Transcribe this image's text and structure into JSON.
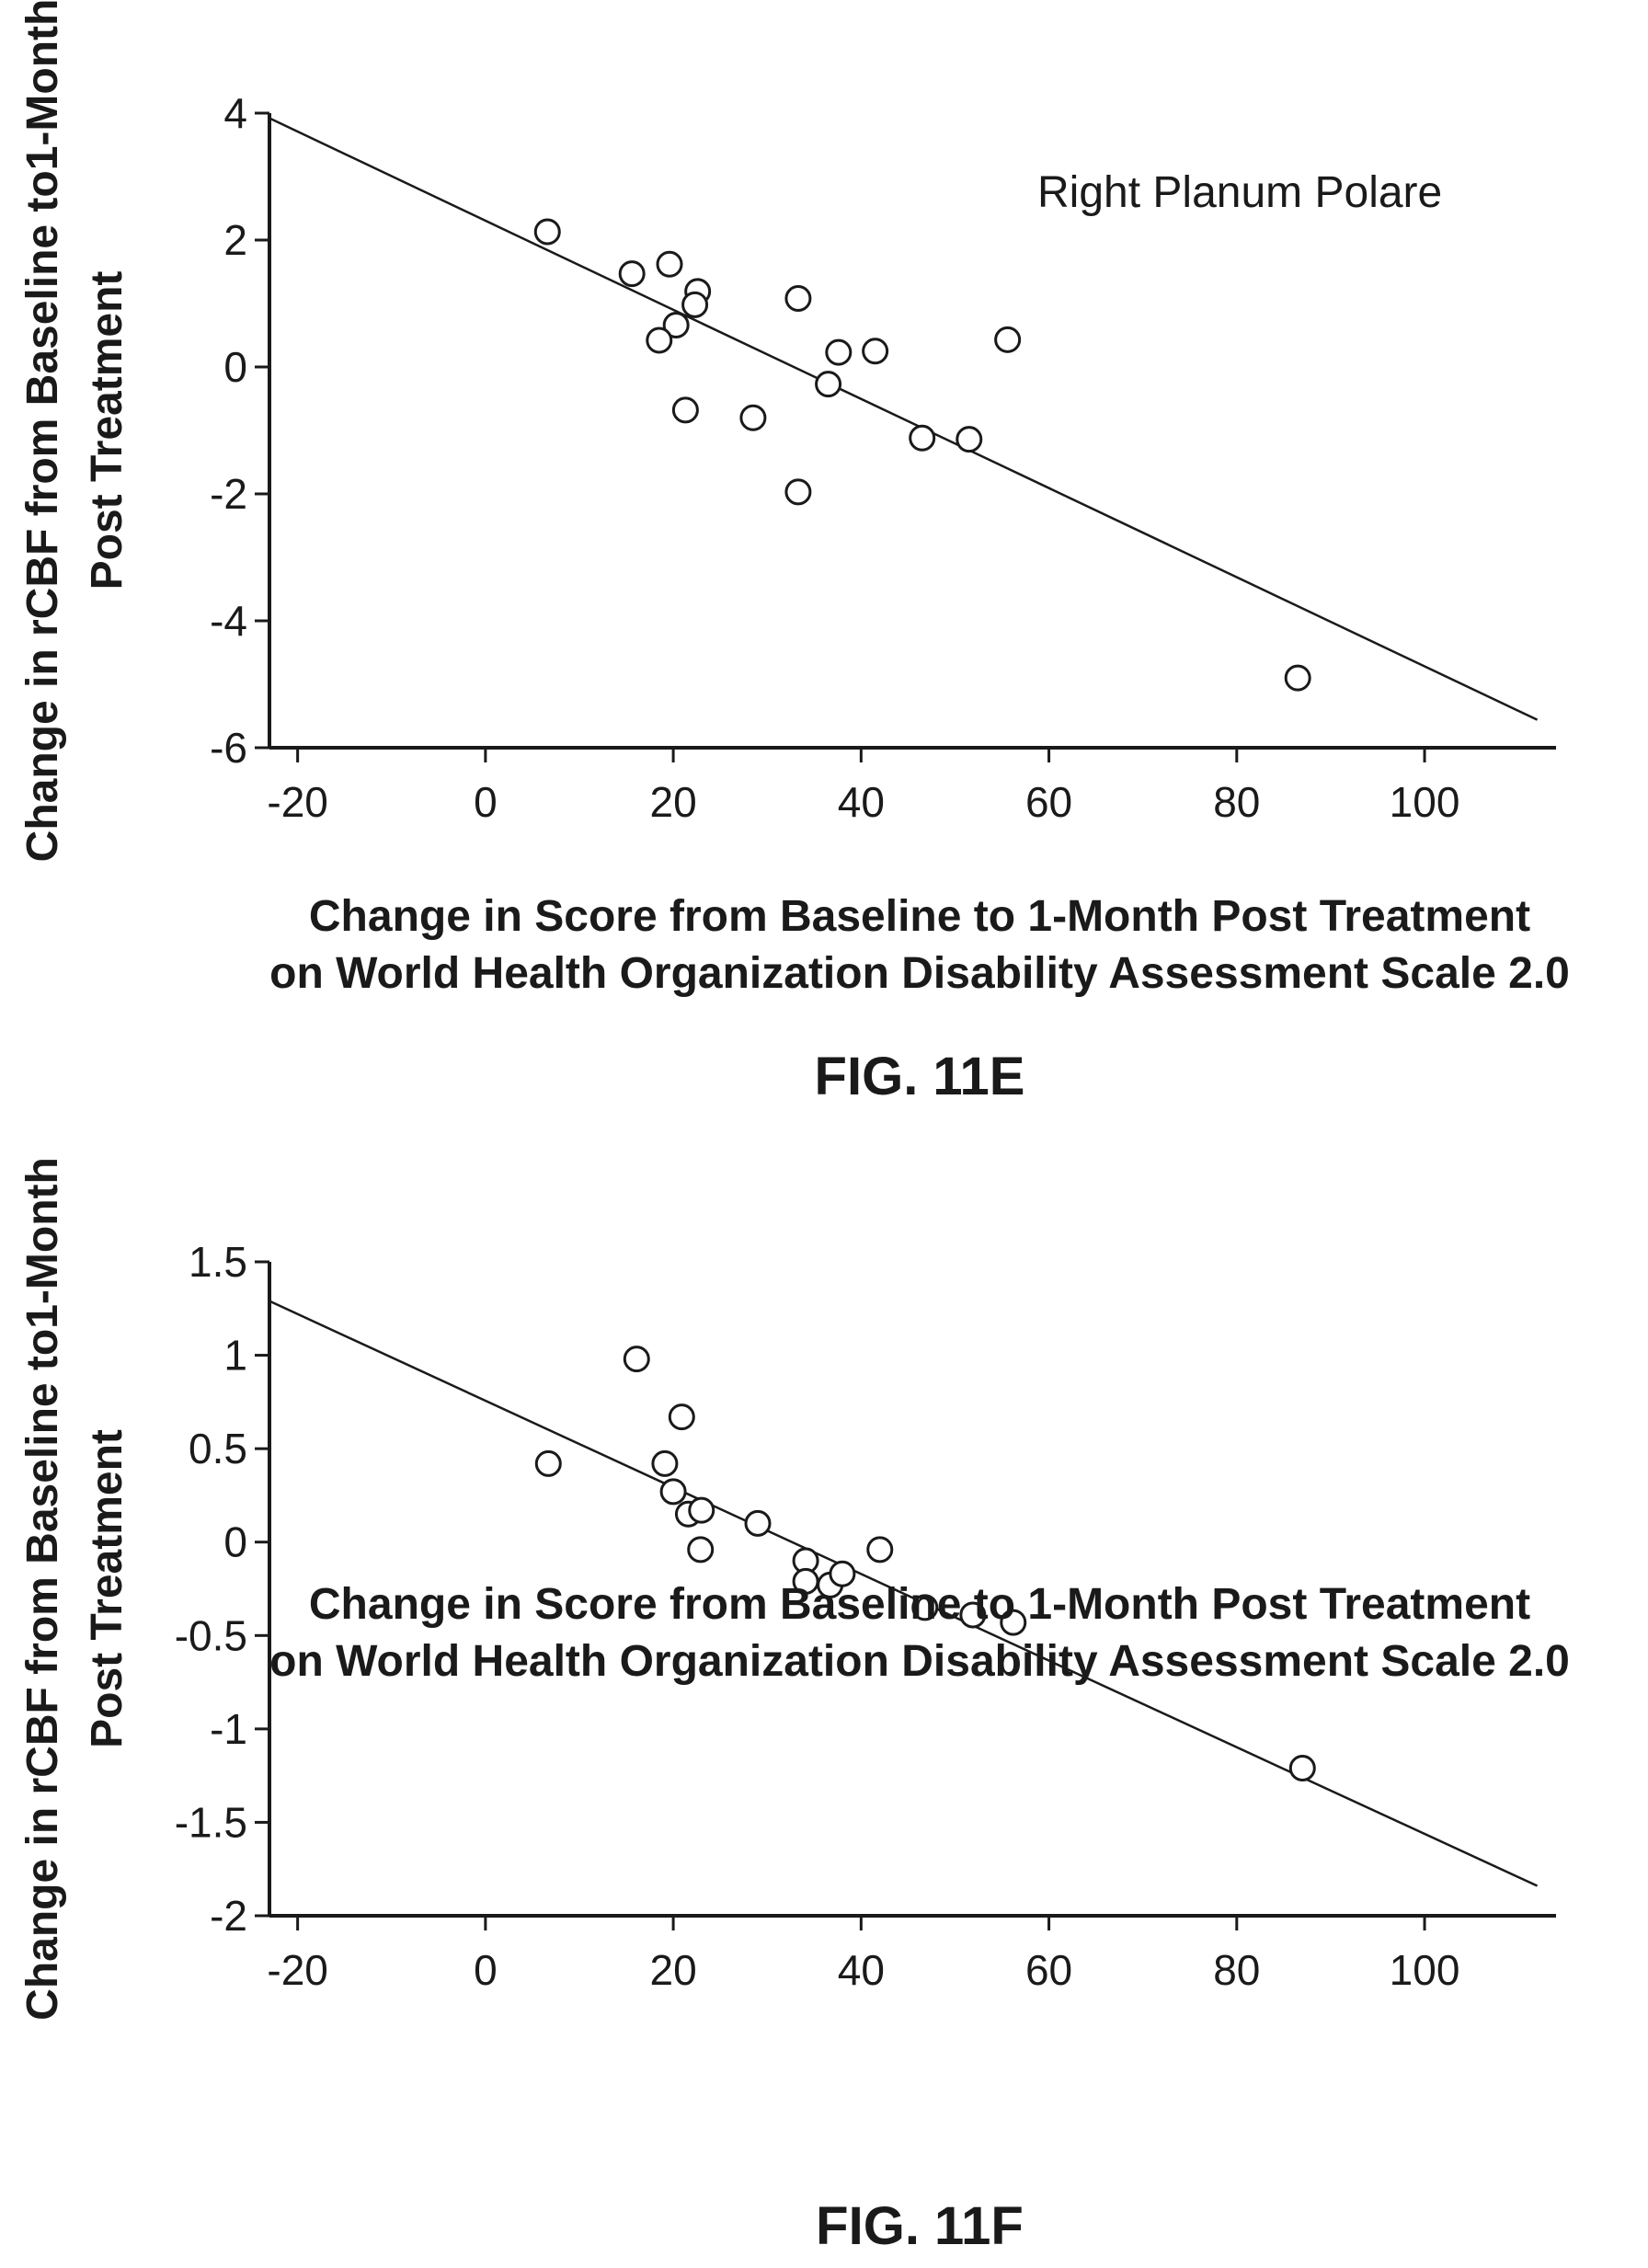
{
  "chart_data": [
    {
      "type": "scatter",
      "figure_label": "FIG. 11E",
      "annotation": "Right Planum Polare",
      "xlabel_lines": [
        "Change in Score from Baseline to 1-Month Post Treatment",
        "on World Health Organization Disability Assessment Scale 2.0"
      ],
      "ylabel_lines": [
        "Change in rCBF from Baseline to1-Month",
        "Post Treatment"
      ],
      "xlim": [
        -23,
        114
      ],
      "ylim": [
        -6,
        4
      ],
      "x_ticks": [
        -20,
        0,
        20,
        40,
        60,
        80,
        100
      ],
      "x_tick_labels": [
        "-20",
        "0",
        "20",
        "40",
        "60",
        "80",
        "100"
      ],
      "y_ticks": [
        -6,
        -4,
        -2,
        0,
        2,
        4
      ],
      "y_tick_labels": [
        "-6",
        "-4",
        "-2",
        "0",
        "2",
        "4"
      ],
      "points": [
        {
          "x": 6.6,
          "y": 2.13
        },
        {
          "x": 15.6,
          "y": 1.47
        },
        {
          "x": 19.6,
          "y": 1.62
        },
        {
          "x": 22.6,
          "y": 1.19
        },
        {
          "x": 22.3,
          "y": 0.98
        },
        {
          "x": 20.3,
          "y": 0.66
        },
        {
          "x": 18.5,
          "y": 0.42
        },
        {
          "x": 21.3,
          "y": -0.68
        },
        {
          "x": 28.5,
          "y": -0.8
        },
        {
          "x": 33.3,
          "y": 1.08
        },
        {
          "x": 37.6,
          "y": 0.23
        },
        {
          "x": 41.5,
          "y": 0.25
        },
        {
          "x": 36.5,
          "y": -0.27
        },
        {
          "x": 33.3,
          "y": -1.97
        },
        {
          "x": 46.5,
          "y": -1.12
        },
        {
          "x": 51.5,
          "y": -1.14
        },
        {
          "x": 55.6,
          "y": 0.43
        },
        {
          "x": 86.5,
          "y": -4.9
        }
      ],
      "fit_line": {
        "x": [
          -23,
          112
        ],
        "y": [
          3.92,
          -5.56
        ]
      }
    },
    {
      "type": "scatter",
      "figure_label": "FIG. 11F",
      "xlabel_lines": [
        "Change in Score from Baseline to 1-Month Post Treatment",
        "on World Health Organization Disability Assessment Scale 2.0"
      ],
      "ylabel_lines": [
        "Change in rCBF from Baseline to1-Month",
        "Post Treatment"
      ],
      "xlim": [
        -23,
        114
      ],
      "ylim": [
        -2,
        1.5
      ],
      "x_ticks": [
        -20,
        0,
        20,
        40,
        60,
        80,
        100
      ],
      "x_tick_labels": [
        "-20",
        "0",
        "20",
        "40",
        "60",
        "80",
        "100"
      ],
      "y_ticks": [
        -2,
        -1.5,
        -1,
        -0.5,
        0,
        0.5,
        1,
        1.5
      ],
      "y_tick_labels": [
        "-2",
        "-1.5",
        "-1",
        "-0.5",
        "0",
        "0.5",
        "1",
        "1.5"
      ],
      "points": [
        {
          "x": 6.7,
          "y": 0.42
        },
        {
          "x": 16.1,
          "y": 0.98
        },
        {
          "x": 20.9,
          "y": 0.67
        },
        {
          "x": 19.1,
          "y": 0.42
        },
        {
          "x": 20.0,
          "y": 0.27
        },
        {
          "x": 21.6,
          "y": 0.15
        },
        {
          "x": 23.0,
          "y": 0.17
        },
        {
          "x": 22.9,
          "y": -0.04
        },
        {
          "x": 29.0,
          "y": 0.1
        },
        {
          "x": 34.1,
          "y": -0.1
        },
        {
          "x": 34.1,
          "y": -0.21
        },
        {
          "x": 36.7,
          "y": -0.23
        },
        {
          "x": 38.0,
          "y": -0.17
        },
        {
          "x": 42.0,
          "y": -0.04
        },
        {
          "x": 46.8,
          "y": -0.35
        },
        {
          "x": 51.9,
          "y": -0.39
        },
        {
          "x": 56.2,
          "y": -0.43
        },
        {
          "x": 87.0,
          "y": -1.21
        }
      ],
      "fit_line": {
        "x": [
          -23,
          112
        ],
        "y": [
          1.29,
          -1.84
        ]
      }
    }
  ]
}
